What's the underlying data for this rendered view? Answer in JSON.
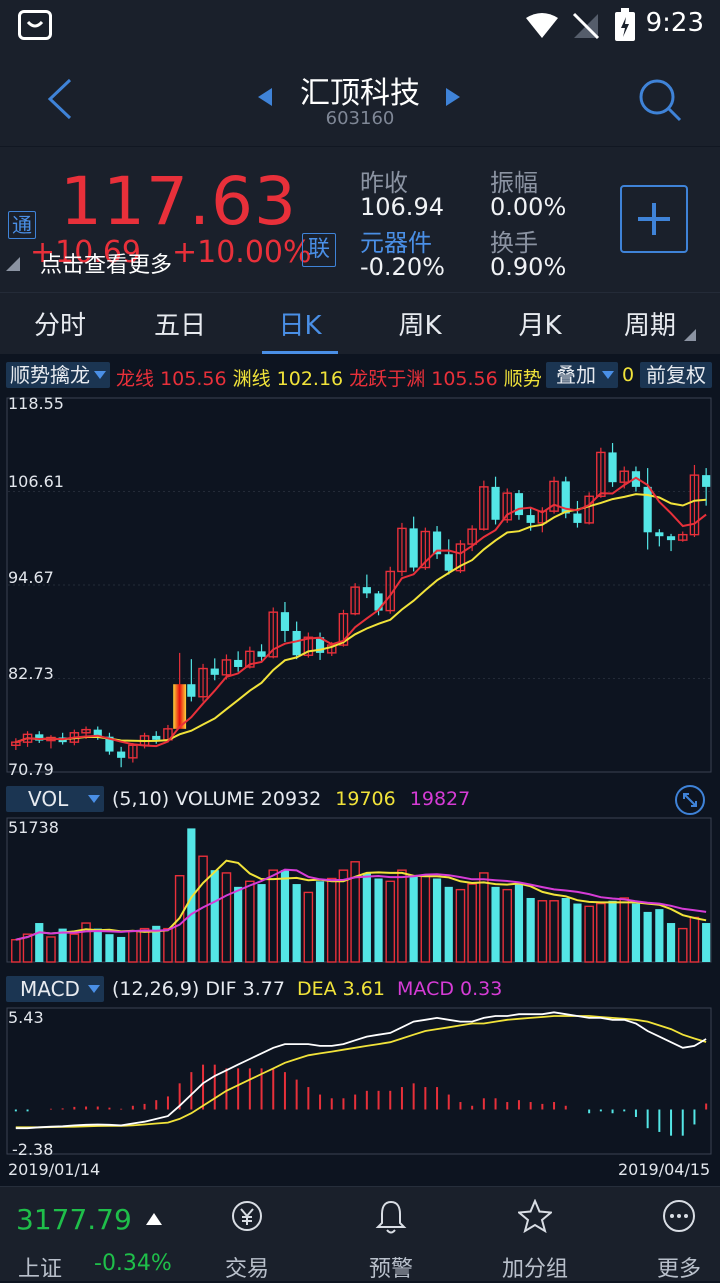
{
  "status_bar": {
    "time": "9:23"
  },
  "header": {
    "name": "汇顶科技",
    "code": "603160"
  },
  "quote": {
    "price": "117.63",
    "change": "+10.69",
    "change_pct": "+10.00%",
    "overlay_text": "点击查看更多",
    "tag_tong": "通",
    "tag_lian": "联",
    "prev_close_label": "昨收",
    "prev_close": "106.94",
    "amplitude_label": "振幅",
    "amplitude": "0.00%",
    "sector_label": "元器件",
    "sector_change": "-0.20%",
    "turnover_label": "换手",
    "turnover": "0.90%",
    "colors": {
      "up": "#e8303a",
      "accent": "#4a8fe6"
    }
  },
  "tabs": [
    "分时",
    "五日",
    "日K",
    "周K",
    "月K",
    "周期"
  ],
  "active_tab": "日K",
  "indicator_bar": {
    "selector": "顺势擒龙",
    "long_label": "龙线",
    "long_value": "105.56",
    "yuan_label": "渊线",
    "yuan_value": "102.16",
    "leap_label": "龙跃于渊",
    "leap_value": "105.56",
    "trend_label": "顺势",
    "overlay_btn": "叠加",
    "overlay_value": "0",
    "adjust_btn": "前复权"
  },
  "kline_axis": {
    "max": "118.55",
    "l1": "106.61",
    "l2": "94.67",
    "l3": "82.73",
    "min": "70.79"
  },
  "volume_bar": {
    "selector": "VOL",
    "params": "(5,10)",
    "label": "VOLUME",
    "value": "20932",
    "ma5": "19706",
    "ma10": "19827",
    "axis_max": "51738"
  },
  "macd_bar": {
    "selector": "MACD",
    "params": "(12,26,9)",
    "dif_label": "DIF",
    "dif": "3.77",
    "dea_label": "DEA",
    "dea": "3.61",
    "macd_label": "MACD",
    "macd": "0.33",
    "axis_max": "5.43",
    "axis_min": "-2.38"
  },
  "dates": {
    "start": "2019/01/14",
    "end": "2019/04/15"
  },
  "bottom_nav": {
    "index_value": "3177.79",
    "index_name": "上证",
    "index_change": "-0.34%",
    "items": [
      "交易",
      "预警",
      "加分组",
      "更多"
    ]
  },
  "chart_data": {
    "type": "candlestick",
    "y_range": [
      70.79,
      118.55
    ],
    "candles": [
      [
        74.2,
        75.1,
        73.6,
        74.6
      ],
      [
        74.6,
        76.0,
        74.0,
        75.6
      ],
      [
        75.6,
        76.0,
        74.5,
        74.8
      ],
      [
        74.8,
        75.5,
        73.8,
        75.2
      ],
      [
        75.2,
        75.8,
        74.3,
        74.6
      ],
      [
        74.6,
        76.2,
        74.2,
        75.8
      ],
      [
        75.8,
        76.6,
        75.0,
        76.2
      ],
      [
        76.2,
        76.6,
        74.9,
        75.3
      ],
      [
        75.3,
        75.8,
        73.0,
        73.4
      ],
      [
        73.4,
        74.0,
        71.4,
        72.6
      ],
      [
        72.6,
        74.5,
        72.0,
        74.2
      ],
      [
        74.2,
        75.8,
        73.8,
        75.4
      ],
      [
        75.4,
        76.0,
        74.4,
        74.9
      ],
      [
        74.9,
        76.8,
        74.6,
        76.3
      ],
      [
        76.3,
        86.0,
        76.3,
        82.0
      ],
      [
        82.0,
        85.2,
        79.8,
        80.4
      ],
      [
        80.4,
        84.6,
        79.8,
        84.0
      ],
      [
        84.0,
        85.3,
        82.5,
        83.2
      ],
      [
        83.2,
        85.8,
        82.6,
        85.1
      ],
      [
        85.1,
        86.2,
        83.6,
        84.2
      ],
      [
        84.2,
        86.8,
        84.0,
        86.2
      ],
      [
        86.2,
        87.1,
        85.0,
        85.5
      ],
      [
        85.5,
        91.8,
        85.3,
        91.2
      ],
      [
        91.2,
        92.5,
        87.4,
        88.8
      ],
      [
        88.8,
        90.0,
        85.2,
        85.7
      ],
      [
        85.7,
        88.6,
        85.4,
        88.0
      ],
      [
        88.0,
        88.6,
        85.1,
        86.0
      ],
      [
        86.0,
        87.4,
        85.6,
        87.0
      ],
      [
        87.0,
        91.5,
        86.8,
        91.0
      ],
      [
        91.0,
        94.9,
        90.8,
        94.4
      ],
      [
        94.4,
        96.0,
        93.0,
        93.6
      ],
      [
        93.6,
        93.9,
        90.8,
        91.4
      ],
      [
        91.4,
        97.0,
        91.0,
        96.4
      ],
      [
        96.4,
        102.6,
        95.8,
        101.9
      ],
      [
        101.9,
        103.4,
        96.4,
        96.9
      ],
      [
        96.9,
        102.0,
        96.6,
        101.5
      ],
      [
        101.5,
        102.2,
        98.0,
        98.6
      ],
      [
        98.6,
        100.5,
        96.0,
        96.5
      ],
      [
        96.5,
        100.4,
        96.2,
        99.9
      ],
      [
        99.9,
        102.3,
        99.0,
        101.8
      ],
      [
        101.8,
        108.0,
        101.6,
        107.2
      ],
      [
        107.2,
        108.5,
        102.4,
        103.0
      ],
      [
        103.0,
        107.0,
        102.6,
        106.4
      ],
      [
        106.4,
        106.8,
        103.0,
        103.6
      ],
      [
        103.6,
        104.6,
        101.6,
        102.6
      ],
      [
        102.6,
        104.6,
        101.4,
        104.1
      ],
      [
        104.1,
        108.5,
        103.8,
        107.9
      ],
      [
        107.9,
        108.5,
        103.2,
        103.8
      ],
      [
        103.8,
        105.4,
        102.0,
        102.6
      ],
      [
        102.6,
        106.5,
        102.4,
        106.0
      ],
      [
        106.0,
        112.2,
        105.8,
        111.6
      ],
      [
        111.6,
        112.8,
        107.2,
        107.8
      ],
      [
        107.8,
        109.8,
        107.0,
        109.2
      ],
      [
        109.2,
        109.8,
        106.6,
        107.2
      ],
      [
        107.2,
        109.6,
        99.2,
        101.4
      ],
      [
        101.4,
        101.8,
        99.6,
        100.9
      ],
      [
        100.9,
        101.2,
        99.0,
        100.4
      ],
      [
        100.4,
        101.5,
        100.2,
        101.1
      ],
      [
        101.1,
        110.0,
        100.8,
        108.7
      ],
      [
        108.7,
        109.6,
        104.8,
        107.2
      ]
    ],
    "volume_range": [
      0,
      51738
    ],
    "volume": [
      8,
      10,
      14,
      9,
      12,
      10,
      14,
      12,
      10,
      9,
      11,
      12,
      13,
      12,
      31,
      48,
      38,
      33,
      32,
      27,
      29,
      28,
      33,
      33,
      28,
      25,
      29,
      30,
      33,
      36,
      32,
      30,
      29,
      33,
      31,
      31,
      30,
      27,
      26,
      28,
      32,
      27,
      26,
      28,
      23,
      22,
      22,
      23,
      21,
      20,
      21,
      22,
      23,
      21,
      18,
      19,
      14,
      12,
      16,
      14
    ],
    "macd_range": [
      -2.38,
      5.43
    ],
    "dif": [
      -1.0,
      -1.0,
      -0.95,
      -0.92,
      -0.9,
      -0.85,
      -0.82,
      -0.8,
      -0.82,
      -0.85,
      -0.75,
      -0.65,
      -0.5,
      -0.35,
      0.2,
      0.8,
      1.4,
      1.8,
      2.1,
      2.4,
      2.7,
      3.0,
      3.3,
      3.5,
      3.5,
      3.5,
      3.4,
      3.4,
      3.5,
      3.7,
      3.9,
      4.0,
      4.1,
      4.4,
      4.7,
      4.8,
      4.9,
      4.8,
      4.7,
      4.7,
      4.9,
      5.0,
      5.0,
      5.1,
      5.1,
      5.1,
      5.2,
      5.1,
      5.0,
      4.9,
      4.9,
      4.8,
      4.8,
      4.6,
      4.2,
      3.9,
      3.6,
      3.3,
      3.4,
      3.77
    ],
    "dea": [
      -0.95,
      -0.95,
      -0.95,
      -0.94,
      -0.93,
      -0.92,
      -0.9,
      -0.88,
      -0.87,
      -0.87,
      -0.85,
      -0.8,
      -0.75,
      -0.7,
      -0.5,
      -0.2,
      0.2,
      0.6,
      1.0,
      1.3,
      1.6,
      1.9,
      2.2,
      2.5,
      2.7,
      2.9,
      3.0,
      3.1,
      3.2,
      3.3,
      3.4,
      3.5,
      3.6,
      3.8,
      4.0,
      4.2,
      4.3,
      4.4,
      4.5,
      4.6,
      4.6,
      4.7,
      4.8,
      4.85,
      4.9,
      4.95,
      5.0,
      5.0,
      5.0,
      5.0,
      4.95,
      4.9,
      4.85,
      4.8,
      4.7,
      4.5,
      4.3,
      4.0,
      3.8,
      3.61
    ]
  }
}
